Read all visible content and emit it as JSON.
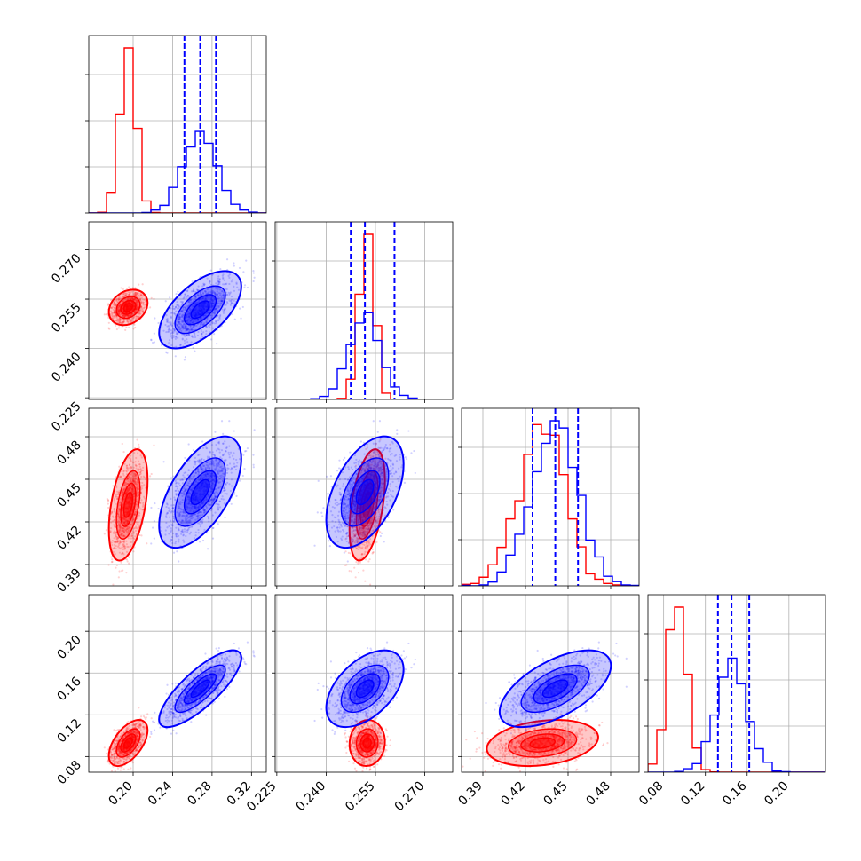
{
  "chart_data": {
    "type": "corner",
    "params": [
      {
        "ticks": [
          0.2,
          0.24,
          0.28,
          0.32
        ],
        "ticklabels": [
          "0.20",
          "0.24",
          "0.28",
          "0.32"
        ],
        "range": [
          0.155,
          0.335
        ]
      },
      {
        "ticks": [
          0.225,
          0.24,
          0.255,
          0.27
        ],
        "ticklabels": [
          "0.225",
          "0.240",
          "0.255",
          "0.270"
        ],
        "range": [
          0.2245,
          0.2785
        ]
      },
      {
        "ticks": [
          0.39,
          0.42,
          0.45,
          0.48
        ],
        "ticklabels": [
          "0.39",
          "0.42",
          "0.45",
          "0.48"
        ],
        "range": [
          0.375,
          0.5
        ]
      },
      {
        "ticks": [
          0.08,
          0.12,
          0.16,
          0.2
        ],
        "ticklabels": [
          "0.08",
          "0.12",
          "0.16",
          "0.20"
        ],
        "range": [
          0.065,
          0.235
        ]
      }
    ],
    "series": [
      {
        "color": "#ff0000",
        "mean": [
          0.195,
          0.2525,
          0.432,
          0.093
        ],
        "sd": [
          0.008,
          0.0022,
          0.016,
          0.009
        ],
        "corr": [
          [
            1,
            0.25,
            0.45,
            0.55
          ],
          [
            0.25,
            1,
            0.45,
            0.05
          ],
          [
            0.45,
            0.45,
            1,
            0.25
          ],
          [
            0.55,
            0.05,
            0.25,
            1
          ]
        ]
      },
      {
        "color": "#0000ff",
        "mean": [
          0.268,
          0.2518,
          0.441,
          0.145
        ],
        "sd": [
          0.017,
          0.0048,
          0.016,
          0.015
        ],
        "corr": [
          [
            1,
            0.6,
            0.6,
            0.8
          ],
          [
            0.6,
            1,
            0.5,
            0.5
          ],
          [
            0.6,
            0.5,
            1,
            0.6
          ],
          [
            0.8,
            0.5,
            0.6,
            1
          ]
        ],
        "quantiles": [
          [
            0.252,
            0.268,
            0.284
          ],
          [
            0.2475,
            0.2518,
            0.2608
          ],
          [
            0.425,
            0.441,
            0.457
          ],
          [
            0.132,
            0.145,
            0.162
          ]
        ]
      }
    ],
    "grid": true,
    "legend": "none"
  }
}
